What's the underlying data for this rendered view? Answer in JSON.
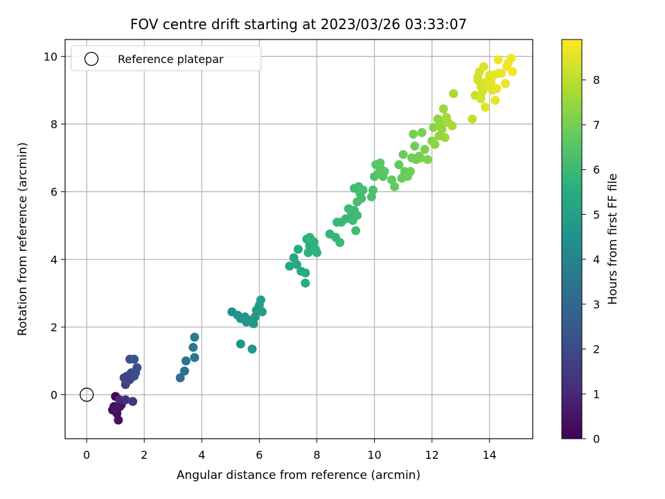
{
  "chart_data": {
    "type": "scatter",
    "title": "FOV centre drift starting at 2023/03/26 03:33:07",
    "xlabel": "Angular distance from reference (arcmin)",
    "ylabel": "Rotation from reference (arcmin)",
    "xlim": [
      -0.75,
      15.5
    ],
    "ylim": [
      -1.3,
      10.5
    ],
    "xticks": [
      0,
      2,
      4,
      6,
      8,
      10,
      12,
      14
    ],
    "yticks": [
      0,
      2,
      4,
      6,
      8,
      10
    ],
    "grid": true,
    "legend": {
      "position": "top-left",
      "entries": [
        "Reference platepar"
      ]
    },
    "reference_point": {
      "x": 0,
      "y": 0,
      "label": "Reference platepar"
    },
    "colorbar": {
      "label": "Hours from first FF file",
      "colormap": "viridis",
      "range": [
        0,
        8.9
      ],
      "ticks": [
        0,
        1,
        2,
        3,
        4,
        5,
        6,
        7,
        8
      ]
    },
    "points": [
      {
        "x": 1.0,
        "y": -0.05,
        "h": 0.15
      },
      {
        "x": 0.95,
        "y": -0.35,
        "h": 0.2
      },
      {
        "x": 1.15,
        "y": -0.35,
        "h": 0.25
      },
      {
        "x": 0.9,
        "y": -0.45,
        "h": 0.3
      },
      {
        "x": 1.05,
        "y": -0.55,
        "h": 0.35
      },
      {
        "x": 1.1,
        "y": -0.75,
        "h": 0.4
      },
      {
        "x": 1.2,
        "y": -0.3,
        "h": 0.45
      },
      {
        "x": 1.0,
        "y": -0.4,
        "h": 0.5
      },
      {
        "x": 1.15,
        "y": -0.15,
        "h": 1.0
      },
      {
        "x": 1.35,
        "y": -0.15,
        "h": 1.2
      },
      {
        "x": 1.6,
        "y": -0.2,
        "h": 1.4
      },
      {
        "x": 1.35,
        "y": 0.3,
        "h": 1.6
      },
      {
        "x": 1.5,
        "y": 0.45,
        "h": 1.7
      },
      {
        "x": 1.4,
        "y": 0.55,
        "h": 1.8
      },
      {
        "x": 1.55,
        "y": 0.65,
        "h": 1.9
      },
      {
        "x": 1.65,
        "y": 0.55,
        "h": 2.0
      },
      {
        "x": 1.7,
        "y": 0.65,
        "h": 2.05
      },
      {
        "x": 1.75,
        "y": 0.8,
        "h": 2.1
      },
      {
        "x": 1.5,
        "y": 1.05,
        "h": 2.2
      },
      {
        "x": 1.65,
        "y": 1.05,
        "h": 2.3
      },
      {
        "x": 1.4,
        "y": 0.4,
        "h": 1.75
      },
      {
        "x": 1.3,
        "y": 0.5,
        "h": 1.85
      },
      {
        "x": 3.25,
        "y": 0.5,
        "h": 3.2
      },
      {
        "x": 3.4,
        "y": 0.7,
        "h": 3.3
      },
      {
        "x": 3.45,
        "y": 1.0,
        "h": 3.4
      },
      {
        "x": 3.7,
        "y": 1.4,
        "h": 3.5
      },
      {
        "x": 3.75,
        "y": 1.1,
        "h": 3.6
      },
      {
        "x": 3.75,
        "y": 1.7,
        "h": 3.7
      },
      {
        "x": 5.05,
        "y": 2.45,
        "h": 4.4
      },
      {
        "x": 5.25,
        "y": 2.35,
        "h": 4.5
      },
      {
        "x": 5.35,
        "y": 2.25,
        "h": 4.55
      },
      {
        "x": 5.5,
        "y": 2.3,
        "h": 4.6
      },
      {
        "x": 5.55,
        "y": 2.15,
        "h": 4.65
      },
      {
        "x": 5.7,
        "y": 2.2,
        "h": 4.7
      },
      {
        "x": 5.8,
        "y": 2.1,
        "h": 4.75
      },
      {
        "x": 5.85,
        "y": 2.3,
        "h": 4.8
      },
      {
        "x": 5.9,
        "y": 2.5,
        "h": 4.85
      },
      {
        "x": 6.0,
        "y": 2.65,
        "h": 4.9
      },
      {
        "x": 6.05,
        "y": 2.8,
        "h": 4.95
      },
      {
        "x": 6.1,
        "y": 2.45,
        "h": 5.0
      },
      {
        "x": 5.35,
        "y": 1.5,
        "h": 4.6
      },
      {
        "x": 5.75,
        "y": 1.35,
        "h": 4.7
      },
      {
        "x": 7.05,
        "y": 3.8,
        "h": 5.2
      },
      {
        "x": 7.2,
        "y": 4.05,
        "h": 5.25
      },
      {
        "x": 7.3,
        "y": 3.85,
        "h": 5.3
      },
      {
        "x": 7.35,
        "y": 4.3,
        "h": 5.35
      },
      {
        "x": 7.45,
        "y": 3.65,
        "h": 5.4
      },
      {
        "x": 7.6,
        "y": 3.6,
        "h": 5.45
      },
      {
        "x": 7.6,
        "y": 3.3,
        "h": 5.5
      },
      {
        "x": 7.65,
        "y": 4.6,
        "h": 5.55
      },
      {
        "x": 7.7,
        "y": 4.2,
        "h": 5.6
      },
      {
        "x": 7.75,
        "y": 4.4,
        "h": 5.62
      },
      {
        "x": 7.85,
        "y": 4.55,
        "h": 5.65
      },
      {
        "x": 7.9,
        "y": 4.5,
        "h": 5.68
      },
      {
        "x": 7.95,
        "y": 4.3,
        "h": 5.7
      },
      {
        "x": 8.0,
        "y": 4.2,
        "h": 5.72
      },
      {
        "x": 7.75,
        "y": 4.65,
        "h": 5.74
      },
      {
        "x": 8.45,
        "y": 4.75,
        "h": 5.8
      },
      {
        "x": 8.65,
        "y": 4.65,
        "h": 5.85
      },
      {
        "x": 8.7,
        "y": 5.1,
        "h": 5.9
      },
      {
        "x": 8.8,
        "y": 4.5,
        "h": 5.92
      },
      {
        "x": 8.85,
        "y": 5.1,
        "h": 5.95
      },
      {
        "x": 9.0,
        "y": 5.2,
        "h": 5.98
      },
      {
        "x": 9.1,
        "y": 5.5,
        "h": 6.0
      },
      {
        "x": 9.2,
        "y": 5.3,
        "h": 6.02
      },
      {
        "x": 9.25,
        "y": 5.15,
        "h": 6.04
      },
      {
        "x": 9.3,
        "y": 5.45,
        "h": 6.06
      },
      {
        "x": 9.4,
        "y": 5.3,
        "h": 6.08
      },
      {
        "x": 9.35,
        "y": 4.85,
        "h": 6.1
      },
      {
        "x": 9.3,
        "y": 6.1,
        "h": 6.12
      },
      {
        "x": 9.45,
        "y": 6.15,
        "h": 6.14
      },
      {
        "x": 9.5,
        "y": 5.95,
        "h": 6.16
      },
      {
        "x": 9.55,
        "y": 5.8,
        "h": 6.18
      },
      {
        "x": 9.4,
        "y": 5.7,
        "h": 6.2
      },
      {
        "x": 9.6,
        "y": 6.05,
        "h": 6.22
      },
      {
        "x": 9.9,
        "y": 5.85,
        "h": 6.3
      },
      {
        "x": 9.95,
        "y": 6.05,
        "h": 6.32
      },
      {
        "x": 10.0,
        "y": 6.45,
        "h": 6.4
      },
      {
        "x": 10.05,
        "y": 6.8,
        "h": 6.45
      },
      {
        "x": 10.15,
        "y": 6.55,
        "h": 6.5
      },
      {
        "x": 10.25,
        "y": 6.65,
        "h": 6.52
      },
      {
        "x": 10.3,
        "y": 6.45,
        "h": 6.55
      },
      {
        "x": 10.35,
        "y": 6.6,
        "h": 6.58
      },
      {
        "x": 10.2,
        "y": 6.85,
        "h": 6.6
      },
      {
        "x": 10.6,
        "y": 6.35,
        "h": 6.7
      },
      {
        "x": 10.7,
        "y": 6.15,
        "h": 6.72
      },
      {
        "x": 10.85,
        "y": 6.8,
        "h": 6.75
      },
      {
        "x": 10.95,
        "y": 6.4,
        "h": 6.78
      },
      {
        "x": 11.05,
        "y": 6.6,
        "h": 6.8
      },
      {
        "x": 11.0,
        "y": 7.1,
        "h": 6.82
      },
      {
        "x": 11.15,
        "y": 6.45,
        "h": 6.85
      },
      {
        "x": 11.25,
        "y": 6.6,
        "h": 6.88
      },
      {
        "x": 11.3,
        "y": 7.0,
        "h": 6.9
      },
      {
        "x": 11.4,
        "y": 7.35,
        "h": 6.92
      },
      {
        "x": 11.45,
        "y": 6.95,
        "h": 6.95
      },
      {
        "x": 11.55,
        "y": 7.05,
        "h": 6.98
      },
      {
        "x": 11.6,
        "y": 7.0,
        "h": 7.0
      },
      {
        "x": 11.35,
        "y": 7.7,
        "h": 7.0
      },
      {
        "x": 11.65,
        "y": 7.75,
        "h": 7.05
      },
      {
        "x": 11.75,
        "y": 7.25,
        "h": 7.1
      },
      {
        "x": 11.85,
        "y": 6.95,
        "h": 7.15
      },
      {
        "x": 12.0,
        "y": 7.5,
        "h": 7.2
      },
      {
        "x": 12.05,
        "y": 7.9,
        "h": 7.25
      },
      {
        "x": 12.1,
        "y": 7.4,
        "h": 7.3
      },
      {
        "x": 12.2,
        "y": 8.15,
        "h": 7.35
      },
      {
        "x": 12.3,
        "y": 8.0,
        "h": 7.4
      },
      {
        "x": 12.35,
        "y": 7.85,
        "h": 7.45
      },
      {
        "x": 12.4,
        "y": 8.45,
        "h": 7.5
      },
      {
        "x": 12.45,
        "y": 7.6,
        "h": 7.55
      },
      {
        "x": 12.5,
        "y": 8.2,
        "h": 7.6
      },
      {
        "x": 12.55,
        "y": 8.05,
        "h": 7.65
      },
      {
        "x": 12.7,
        "y": 7.95,
        "h": 7.7
      },
      {
        "x": 12.75,
        "y": 8.9,
        "h": 7.75
      },
      {
        "x": 12.25,
        "y": 7.65,
        "h": 7.4
      },
      {
        "x": 13.4,
        "y": 8.15,
        "h": 8.1
      },
      {
        "x": 13.5,
        "y": 8.85,
        "h": 8.2
      },
      {
        "x": 13.6,
        "y": 9.3,
        "h": 8.25
      },
      {
        "x": 13.65,
        "y": 9.55,
        "h": 8.3
      },
      {
        "x": 13.7,
        "y": 8.75,
        "h": 8.35
      },
      {
        "x": 13.75,
        "y": 8.95,
        "h": 8.4
      },
      {
        "x": 13.8,
        "y": 9.7,
        "h": 8.42
      },
      {
        "x": 13.85,
        "y": 8.5,
        "h": 8.44
      },
      {
        "x": 13.9,
        "y": 9.25,
        "h": 8.46
      },
      {
        "x": 13.95,
        "y": 9.1,
        "h": 8.48
      },
      {
        "x": 14.0,
        "y": 9.45,
        "h": 8.5
      },
      {
        "x": 14.05,
        "y": 9.25,
        "h": 8.52
      },
      {
        "x": 14.1,
        "y": 9.0,
        "h": 8.54
      },
      {
        "x": 14.15,
        "y": 9.45,
        "h": 8.56
      },
      {
        "x": 14.2,
        "y": 8.7,
        "h": 8.58
      },
      {
        "x": 14.25,
        "y": 9.05,
        "h": 8.6
      },
      {
        "x": 14.3,
        "y": 9.5,
        "h": 8.62
      },
      {
        "x": 14.4,
        "y": 9.5,
        "h": 8.64
      },
      {
        "x": 14.3,
        "y": 9.9,
        "h": 8.66
      },
      {
        "x": 14.55,
        "y": 9.2,
        "h": 8.68
      },
      {
        "x": 14.6,
        "y": 9.7,
        "h": 8.7
      },
      {
        "x": 14.65,
        "y": 9.8,
        "h": 8.72
      },
      {
        "x": 14.75,
        "y": 9.95,
        "h": 8.74
      },
      {
        "x": 14.8,
        "y": 9.55,
        "h": 8.76
      },
      {
        "x": 13.6,
        "y": 9.4,
        "h": 8.3
      },
      {
        "x": 13.7,
        "y": 9.1,
        "h": 8.35
      }
    ]
  }
}
